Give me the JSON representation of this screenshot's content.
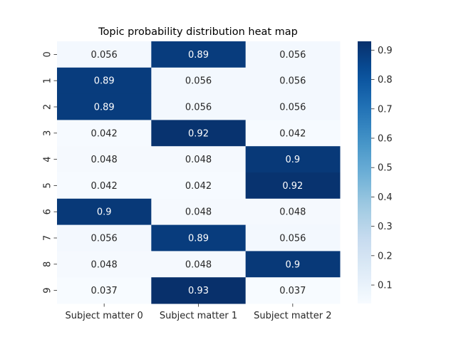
{
  "chart_data": {
    "type": "heatmap",
    "title": "Topic probability distribution heat map",
    "xlabel": "",
    "ylabel": "",
    "columns": [
      "Subject matter 0",
      "Subject matter 1",
      "Subject matter 2"
    ],
    "rows": [
      "0",
      "1",
      "2",
      "3",
      "4",
      "5",
      "6",
      "7",
      "8",
      "9"
    ],
    "values": [
      [
        0.056,
        0.89,
        0.056
      ],
      [
        0.89,
        0.056,
        0.056
      ],
      [
        0.89,
        0.056,
        0.056
      ],
      [
        0.042,
        0.92,
        0.042
      ],
      [
        0.048,
        0.048,
        0.9
      ],
      [
        0.042,
        0.042,
        0.92
      ],
      [
        0.9,
        0.048,
        0.048
      ],
      [
        0.056,
        0.89,
        0.056
      ],
      [
        0.048,
        0.048,
        0.9
      ],
      [
        0.037,
        0.93,
        0.037
      ]
    ],
    "annotations": [
      [
        "0.056",
        "0.89",
        "0.056"
      ],
      [
        "0.89",
        "0.056",
        "0.056"
      ],
      [
        "0.89",
        "0.056",
        "0.056"
      ],
      [
        "0.042",
        "0.92",
        "0.042"
      ],
      [
        "0.048",
        "0.048",
        "0.9"
      ],
      [
        "0.042",
        "0.042",
        "0.92"
      ],
      [
        "0.9",
        "0.048",
        "0.048"
      ],
      [
        "0.056",
        "0.89",
        "0.056"
      ],
      [
        "0.048",
        "0.048",
        "0.9"
      ],
      [
        "0.037",
        "0.93",
        "0.037"
      ]
    ],
    "colormap": "Blues",
    "color_range": [
      0.037,
      0.93
    ],
    "colorbar": {
      "ticks": [
        0.1,
        0.2,
        0.3,
        0.4,
        0.5,
        0.6,
        0.7,
        0.8,
        0.9
      ],
      "tick_labels": [
        "0.1",
        "0.2",
        "0.3",
        "0.4",
        "0.5",
        "0.6",
        "0.7",
        "0.8",
        "0.9"
      ],
      "placement": "right"
    },
    "grid": false
  }
}
